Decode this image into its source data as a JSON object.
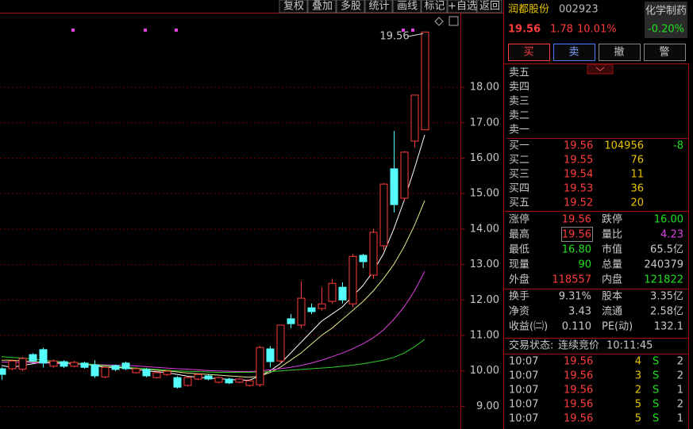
{
  "toolbar": [
    "复权",
    "叠加",
    "多股",
    "统计",
    "画线",
    "标记",
    "+自选",
    "返回"
  ],
  "stock": {
    "name": "润都股份",
    "code": "002923",
    "sector": "化学制药",
    "sector_change": "-0.20%",
    "price": "19.56",
    "change": "1.78",
    "change_pct": "10.01%"
  },
  "actions": [
    "买",
    "卖",
    "撤",
    "警"
  ],
  "sell_levels": [
    "卖五",
    "卖四",
    "卖三",
    "卖二",
    "卖一"
  ],
  "buy_levels": [
    {
      "label": "买一",
      "price": "19.56",
      "volume": "104956",
      "delta": "-8"
    },
    {
      "label": "买二",
      "price": "19.55",
      "volume": "76"
    },
    {
      "label": "买三",
      "price": "19.54",
      "volume": "11"
    },
    {
      "label": "买四",
      "price": "19.53",
      "volume": "36"
    },
    {
      "label": "买五",
      "price": "19.52",
      "volume": "20"
    }
  ],
  "stats": [
    [
      {
        "label": "涨停",
        "value": "19.56"
      },
      {
        "label": "跌停",
        "value": "16.00"
      }
    ],
    [
      {
        "label": "最高",
        "value": "19.56"
      },
      {
        "label": "量比",
        "value": "4.23"
      }
    ],
    [
      {
        "label": "最低",
        "value": "16.80"
      },
      {
        "label": "市值",
        "value": "65.5亿"
      }
    ],
    [
      {
        "label": "现量",
        "value": "90"
      },
      {
        "label": "总量",
        "value": "240379"
      }
    ],
    [
      {
        "label": "外盘",
        "value": "118557"
      },
      {
        "label": "内盘",
        "value": "121822"
      }
    ]
  ],
  "fundamentals": [
    [
      {
        "label": "换手",
        "value": "9.31%"
      },
      {
        "label": "股本",
        "value": "3.35亿"
      }
    ],
    [
      {
        "label": "净资",
        "value": "3.43"
      },
      {
        "label": "流通",
        "value": "2.58亿"
      }
    ],
    [
      {
        "label": "收益(㈡)",
        "value": "0.110"
      },
      {
        "label": "PE(动)",
        "value": "132.1"
      }
    ]
  ],
  "trade_status": {
    "label": "交易状态:",
    "status": "连续竞价",
    "time": "10:11:45"
  },
  "trades": [
    [
      "10:07",
      "19.56",
      "4",
      "S",
      "2"
    ],
    [
      "10:07",
      "19.56",
      "3",
      "S",
      "2"
    ],
    [
      "10:07",
      "19.56",
      "2",
      "S",
      "1"
    ],
    [
      "10:07",
      "19.56",
      "5",
      "S",
      "2"
    ],
    [
      "10:07",
      "19.56",
      "5",
      "S",
      "1"
    ]
  ],
  "chart_data": {
    "type": "candlestick",
    "max_label": "19.56",
    "up_color": "#ff3c3c",
    "down_color": "#54fcfc",
    "ylim": [
      8.36,
      20.06
    ],
    "yticks": [
      {
        "value": 9,
        "label": "9.00"
      },
      {
        "value": 10,
        "label": "10.00"
      },
      {
        "value": 11,
        "label": "11.00"
      },
      {
        "value": 12,
        "label": "12.00"
      },
      {
        "value": 13,
        "label": "13.00"
      },
      {
        "value": 14,
        "label": "14.00"
      },
      {
        "value": 15,
        "label": "15.00"
      },
      {
        "value": 16,
        "label": "16.00"
      },
      {
        "value": 17,
        "label": "17.00"
      },
      {
        "value": 18,
        "label": "18.00"
      }
    ],
    "grid": true,
    "open": [
      10.06,
      10.06,
      10.05,
      10.46,
      10.6,
      10.13,
      10.26,
      10.13,
      10.22,
      10.17,
      9.83,
      10.15,
      10.22,
      9.95,
      10.04,
      9.81,
      9.9,
      9.81,
      9.59,
      9.77,
      9.86,
      9.68,
      9.77,
      9.68,
      9.59,
      9.61,
      10.62,
      10.28,
      11.47,
      11.29,
      11.78,
      11.76,
      11.96,
      12.36,
      11.89,
      13.26,
      12.7,
      13.53,
      15.7,
      14.87,
      16.48,
      16.8
    ],
    "close": [
      9.9,
      10.28,
      10.35,
      10.28,
      10.22,
      10.28,
      10.13,
      10.24,
      10.1,
      9.86,
      10.1,
      10.04,
      10.06,
      10.06,
      9.86,
      9.95,
      9.99,
      9.54,
      9.81,
      9.9,
      9.77,
      9.81,
      9.66,
      9.77,
      9.72,
      10.66,
      10.26,
      11.29,
      11.33,
      12.05,
      11.67,
      11.89,
      12.47,
      12,
      13.23,
      13.08,
      13.91,
      15.27,
      14.69,
      16.17,
      17.78,
      19.56
    ],
    "high": [
      10.1,
      10.32,
      10.4,
      10.5,
      10.65,
      10.32,
      10.3,
      10.28,
      10.26,
      10.3,
      10.14,
      10.18,
      10.26,
      10.1,
      10.08,
      9.98,
      10.02,
      9.85,
      9.84,
      9.93,
      9.9,
      9.84,
      9.8,
      9.8,
      9.76,
      10.7,
      10.7,
      11.3,
      11.6,
      12.52,
      11.9,
      12.36,
      12.6,
      12.5,
      13.3,
      13.3,
      14.0,
      15.3,
      16.77,
      16.2,
      17.78,
      19.56
    ],
    "low": [
      9.75,
      10.02,
      10.0,
      10.24,
      10.1,
      10.09,
      10.08,
      10.1,
      10.06,
      9.8,
      9.79,
      10.0,
      10.02,
      9.92,
      9.82,
      9.78,
      9.86,
      9.5,
      9.56,
      9.74,
      9.73,
      9.65,
      9.63,
      9.65,
      9.56,
      9.55,
      10.1,
      10.2,
      11.2,
      11.2,
      11.6,
      11.7,
      11.9,
      11.9,
      11.8,
      12.9,
      12.6,
      13.4,
      14.47,
      14.8,
      16.3,
      16.8
    ],
    "series": [
      {
        "color": "#ffffff",
        "values": [
          10.15,
          10.1,
          10.15,
          10.2,
          10.25,
          10.25,
          10.22,
          10.2,
          10.2,
          10.15,
          10.1,
          10.1,
          10.08,
          10.05,
          10.0,
          9.98,
          9.95,
          9.9,
          9.85,
          9.82,
          9.8,
          9.78,
          9.76,
          9.74,
          9.74,
          9.85,
          10.0,
          10.2,
          10.5,
          10.8,
          11.1,
          11.4,
          11.6,
          11.8,
          12.1,
          12.4,
          12.8,
          13.3,
          14.0,
          14.8,
          15.7,
          16.66
        ]
      },
      {
        "color": "#e8e88a",
        "values": [
          10.3,
          10.3,
          10.28,
          10.26,
          10.25,
          10.24,
          10.22,
          10.2,
          10.18,
          10.16,
          10.14,
          10.12,
          10.1,
          10.08,
          10.05,
          10.02,
          10.0,
          9.97,
          9.94,
          9.92,
          9.9,
          9.88,
          9.86,
          9.84,
          9.82,
          9.85,
          9.95,
          10.1,
          10.3,
          10.5,
          10.75,
          11.0,
          11.2,
          11.45,
          11.7,
          11.95,
          12.25,
          12.6,
          13.0,
          13.5,
          14.1,
          14.8
        ]
      },
      {
        "color": "#e040e0",
        "values": [
          10.25,
          10.25,
          10.24,
          10.23,
          10.22,
          10.21,
          10.2,
          10.2,
          10.19,
          10.18,
          10.17,
          10.16,
          10.15,
          10.14,
          10.12,
          10.1,
          10.08,
          10.06,
          10.05,
          10.03,
          10.01,
          10.0,
          9.99,
          9.98,
          9.98,
          10.0,
          10.03,
          10.06,
          10.1,
          10.15,
          10.22,
          10.3,
          10.4,
          10.5,
          10.62,
          10.76,
          10.93,
          11.15,
          11.45,
          11.8,
          12.25,
          12.8
        ]
      },
      {
        "color": "#30d030",
        "values": [
          10.4,
          10.38,
          10.36,
          10.34,
          10.3,
          10.28,
          10.25,
          10.22,
          10.2,
          10.18,
          10.15,
          10.13,
          10.1,
          10.08,
          10.06,
          10.04,
          10.02,
          10.0,
          9.99,
          9.98,
          9.97,
          9.96,
          9.96,
          9.96,
          9.96,
          9.97,
          9.98,
          10.0,
          10.02,
          10.04,
          10.06,
          10.08,
          10.1,
          10.13,
          10.16,
          10.2,
          10.25,
          10.3,
          10.38,
          10.5,
          10.68,
          10.89
        ]
      }
    ]
  }
}
